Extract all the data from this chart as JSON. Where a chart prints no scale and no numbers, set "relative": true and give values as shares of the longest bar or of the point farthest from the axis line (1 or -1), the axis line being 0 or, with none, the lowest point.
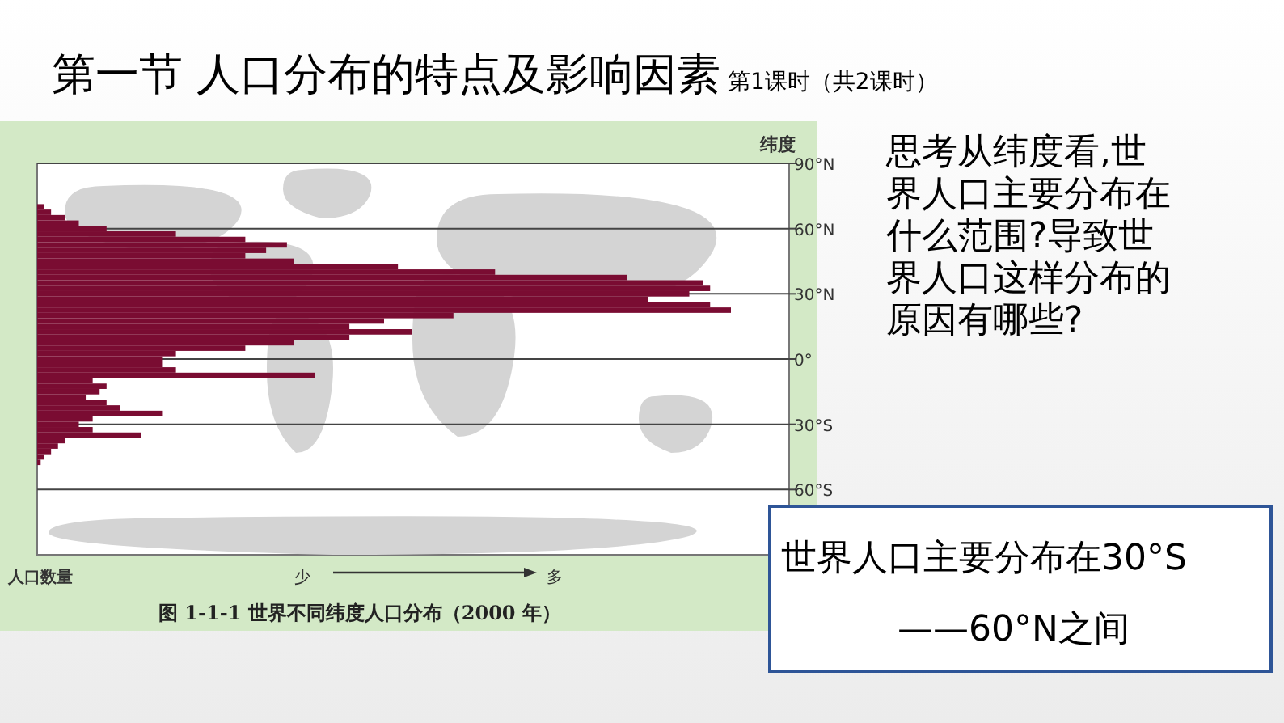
{
  "chart_data": {
    "type": "bar",
    "orientation": "horizontal",
    "relative": true,
    "title": "第一节  人口分布的特点及影响因素",
    "subtitle": "第1课时（共2课时）",
    "xlabel": "人口数量",
    "ylabel": "纬度",
    "x": [
      70,
      67.5,
      65,
      62.5,
      60,
      57.5,
      55,
      52.5,
      50,
      47.5,
      45,
      42.5,
      40,
      37.5,
      35,
      32.5,
      30,
      27.5,
      25,
      22.5,
      20,
      17.5,
      15,
      12.5,
      10,
      7.5,
      5,
      2.5,
      0,
      -2.5,
      -5,
      -7.5,
      -10,
      -12.5,
      -15,
      -17.5,
      -20,
      -22.5,
      -25,
      -27.5,
      -30,
      -32.5,
      -35,
      -37.5,
      -40,
      -42.5,
      -45,
      -47.5
    ],
    "values": [
      0.01,
      0.02,
      0.04,
      0.06,
      0.1,
      0.2,
      0.3,
      0.36,
      0.33,
      0.3,
      0.37,
      0.52,
      0.66,
      0.85,
      0.96,
      0.97,
      0.94,
      0.88,
      0.97,
      1,
      0.6,
      0.5,
      0.45,
      0.54,
      0.45,
      0.37,
      0.3,
      0.2,
      0.18,
      0.18,
      0.2,
      0.4,
      0.08,
      0.1,
      0.09,
      0.07,
      0.1,
      0.12,
      0.18,
      0.08,
      0.06,
      0.08,
      0.15,
      0.04,
      0.03,
      0.02,
      0.01,
      0.005
    ],
    "color": "#7a0c32",
    "ylim": [
      -90,
      90
    ],
    "yticks": [
      {
        "value": 90,
        "label": "90°N"
      },
      {
        "value": 60,
        "label": "60°N"
      },
      {
        "value": 30,
        "label": "30°N"
      },
      {
        "value": 0,
        "label": "0°"
      },
      {
        "value": -30,
        "label": "30°S"
      },
      {
        "value": -60,
        "label": "60°S"
      }
    ],
    "grid": "y",
    "annotations": [
      "思考从纬度看,世界人口主要分布在什么范围?导致世界人口这样分布的原因有哪些?",
      "世界人口主要分布在30°S",
      "——60°N之间",
      "少",
      "多",
      "图 1-1-1    世界不同纬度人口分布（2000 年）"
    ]
  }
}
